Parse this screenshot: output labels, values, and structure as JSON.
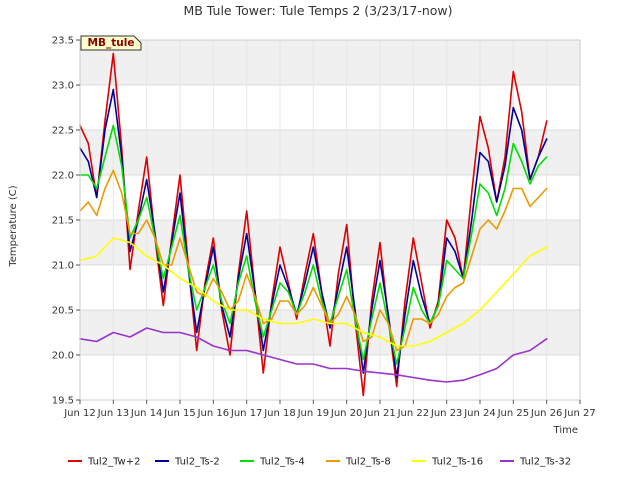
{
  "chart_data": {
    "type": "line",
    "title": "MB Tule Tower: Tule Temps 2 (3/23/17-now)",
    "xlabel": "Time",
    "ylabel": "Temperature (C)",
    "badge": "MB_tule",
    "xlim": [
      12.0,
      27.0
    ],
    "ylim": [
      19.5,
      23.5
    ],
    "x_ticks": [
      {
        "v": 12,
        "label": "Jun 12"
      },
      {
        "v": 13,
        "label": "Jun 13"
      },
      {
        "v": 14,
        "label": "Jun 14"
      },
      {
        "v": 15,
        "label": "Jun 15"
      },
      {
        "v": 16,
        "label": "Jun 16"
      },
      {
        "v": 17,
        "label": "Jun 17"
      },
      {
        "v": 18,
        "label": "Jun 18"
      },
      {
        "v": 19,
        "label": "Jun 19"
      },
      {
        "v": 20,
        "label": "Jun 20"
      },
      {
        "v": 21,
        "label": "Jun 21"
      },
      {
        "v": 22,
        "label": "Jun 22"
      },
      {
        "v": 23,
        "label": "Jun 23"
      },
      {
        "v": 24,
        "label": "Jun 24"
      },
      {
        "v": 25,
        "label": "Jun 25"
      },
      {
        "v": 26,
        "label": "Jun 26"
      },
      {
        "v": 27,
        "label": "Jun 27"
      }
    ],
    "y_ticks": [
      {
        "v": 19.5,
        "label": "19.5"
      },
      {
        "v": 20.0,
        "label": "20.0"
      },
      {
        "v": 20.5,
        "label": "20.5"
      },
      {
        "v": 21.0,
        "label": "21.0"
      },
      {
        "v": 21.5,
        "label": "21.5"
      },
      {
        "v": 22.0,
        "label": "22.0"
      },
      {
        "v": 22.5,
        "label": "22.5"
      },
      {
        "v": 23.0,
        "label": "23.0"
      },
      {
        "v": 23.5,
        "label": "23.5"
      }
    ],
    "legend_position": "bottom",
    "series": [
      {
        "name": "Tul2_Tw+2",
        "color": "#dd0000",
        "x": [
          12.0,
          12.25,
          12.5,
          12.75,
          13.0,
          13.25,
          13.5,
          13.75,
          14.0,
          14.25,
          14.5,
          14.75,
          15.0,
          15.25,
          15.5,
          15.75,
          16.0,
          16.25,
          16.5,
          16.75,
          17.0,
          17.25,
          17.5,
          17.75,
          18.0,
          18.25,
          18.5,
          18.75,
          19.0,
          19.25,
          19.5,
          19.75,
          20.0,
          20.25,
          20.5,
          20.75,
          21.0,
          21.25,
          21.5,
          21.75,
          22.0,
          22.25,
          22.5,
          22.75,
          23.0,
          23.25,
          23.5,
          23.75,
          24.0,
          24.25,
          24.5,
          24.75,
          25.0,
          25.25,
          25.5,
          25.75,
          26.0
        ],
        "y": [
          22.55,
          22.35,
          21.75,
          22.6,
          23.35,
          22.3,
          20.95,
          21.6,
          22.2,
          21.3,
          20.55,
          21.3,
          22.0,
          21.0,
          20.05,
          20.8,
          21.3,
          20.5,
          20.0,
          20.9,
          21.6,
          20.7,
          19.8,
          20.6,
          21.2,
          20.8,
          20.4,
          20.9,
          21.35,
          20.7,
          20.1,
          20.9,
          21.45,
          20.4,
          19.55,
          20.6,
          21.25,
          20.4,
          19.65,
          20.6,
          21.3,
          20.8,
          20.3,
          20.6,
          21.5,
          21.3,
          20.85,
          21.8,
          22.65,
          22.3,
          21.7,
          22.2,
          23.15,
          22.7,
          21.95,
          22.2,
          22.6
        ]
      },
      {
        "name": "Tul2_Ts-2",
        "color": "#000099",
        "x": [
          12.0,
          12.25,
          12.5,
          12.75,
          13.0,
          13.25,
          13.5,
          13.75,
          14.0,
          14.25,
          14.5,
          14.75,
          15.0,
          15.25,
          15.5,
          15.75,
          16.0,
          16.25,
          16.5,
          16.75,
          17.0,
          17.25,
          17.5,
          17.75,
          18.0,
          18.25,
          18.5,
          18.75,
          19.0,
          19.25,
          19.5,
          19.75,
          20.0,
          20.25,
          20.5,
          20.75,
          21.0,
          21.25,
          21.5,
          21.75,
          22.0,
          22.25,
          22.5,
          22.75,
          23.0,
          23.25,
          23.5,
          23.75,
          24.0,
          24.25,
          24.5,
          24.75,
          25.0,
          25.25,
          25.5,
          25.75,
          26.0
        ],
        "y": [
          22.3,
          22.15,
          21.75,
          22.5,
          22.95,
          22.2,
          21.15,
          21.5,
          21.95,
          21.35,
          20.7,
          21.25,
          21.8,
          20.95,
          20.25,
          20.75,
          21.2,
          20.55,
          20.2,
          20.85,
          21.35,
          20.7,
          20.05,
          20.55,
          21.0,
          20.75,
          20.45,
          20.8,
          21.2,
          20.7,
          20.3,
          20.75,
          21.2,
          20.5,
          19.8,
          20.5,
          21.05,
          20.45,
          19.75,
          20.45,
          21.05,
          20.65,
          20.35,
          20.55,
          21.3,
          21.15,
          20.85,
          21.5,
          22.25,
          22.15,
          21.7,
          22.1,
          22.75,
          22.5,
          21.95,
          22.2,
          22.4
        ]
      },
      {
        "name": "Tul2_Ts-4",
        "color": "#00dd00",
        "x": [
          12.0,
          12.25,
          12.5,
          12.75,
          13.0,
          13.25,
          13.5,
          13.75,
          14.0,
          14.25,
          14.5,
          14.75,
          15.0,
          15.25,
          15.5,
          15.75,
          16.0,
          16.25,
          16.5,
          16.75,
          17.0,
          17.25,
          17.5,
          17.75,
          18.0,
          18.25,
          18.5,
          18.75,
          19.0,
          19.25,
          19.5,
          19.75,
          20.0,
          20.25,
          20.5,
          20.75,
          21.0,
          21.25,
          21.5,
          21.75,
          22.0,
          22.25,
          22.5,
          22.75,
          23.0,
          23.25,
          23.5,
          23.75,
          24.0,
          24.25,
          24.5,
          24.75,
          25.0,
          25.25,
          25.5,
          25.75,
          26.0
        ],
        "y": [
          22.0,
          22.0,
          21.85,
          22.2,
          22.55,
          22.1,
          21.3,
          21.5,
          21.75,
          21.3,
          20.85,
          21.2,
          21.55,
          20.95,
          20.5,
          20.75,
          21.0,
          20.6,
          20.35,
          20.8,
          21.1,
          20.6,
          20.2,
          20.5,
          20.8,
          20.7,
          20.45,
          20.7,
          21.0,
          20.6,
          20.35,
          20.65,
          20.95,
          20.4,
          19.95,
          20.4,
          20.8,
          20.35,
          19.9,
          20.3,
          20.75,
          20.5,
          20.35,
          20.55,
          21.05,
          20.95,
          20.85,
          21.35,
          21.9,
          21.8,
          21.55,
          21.85,
          22.35,
          22.15,
          21.9,
          22.1,
          22.2
        ]
      },
      {
        "name": "Tul2_Ts-8",
        "color": "#ee9900",
        "x": [
          12.0,
          12.25,
          12.5,
          12.75,
          13.0,
          13.25,
          13.5,
          13.75,
          14.0,
          14.25,
          14.5,
          14.75,
          15.0,
          15.25,
          15.5,
          15.75,
          16.0,
          16.25,
          16.5,
          16.75,
          17.0,
          17.25,
          17.5,
          17.75,
          18.0,
          18.25,
          18.5,
          18.75,
          19.0,
          19.25,
          19.5,
          19.75,
          20.0,
          20.25,
          20.5,
          20.75,
          21.0,
          21.25,
          21.5,
          21.75,
          22.0,
          22.25,
          22.5,
          22.75,
          23.0,
          23.25,
          23.5,
          23.75,
          24.0,
          24.25,
          24.5,
          24.75,
          25.0,
          25.25,
          25.5,
          25.75,
          26.0
        ],
        "y": [
          21.6,
          21.7,
          21.55,
          21.85,
          22.05,
          21.8,
          21.35,
          21.35,
          21.5,
          21.3,
          21.0,
          21.0,
          21.3,
          21.0,
          20.7,
          20.65,
          20.85,
          20.7,
          20.5,
          20.6,
          20.9,
          20.65,
          20.35,
          20.4,
          20.6,
          20.6,
          20.45,
          20.55,
          20.75,
          20.55,
          20.35,
          20.45,
          20.65,
          20.45,
          20.15,
          20.2,
          20.5,
          20.35,
          20.05,
          20.1,
          20.4,
          20.4,
          20.35,
          20.45,
          20.65,
          20.75,
          20.8,
          21.1,
          21.4,
          21.5,
          21.4,
          21.6,
          21.85,
          21.85,
          21.65,
          21.75,
          21.85
        ]
      },
      {
        "name": "Tul2_Ts-16",
        "color": "#ffff00",
        "x": [
          12.0,
          12.5,
          13.0,
          13.5,
          14.0,
          14.5,
          15.0,
          15.5,
          16.0,
          16.5,
          17.0,
          17.5,
          18.0,
          18.5,
          19.0,
          19.5,
          20.0,
          20.5,
          21.0,
          21.5,
          22.0,
          22.5,
          23.0,
          23.5,
          24.0,
          24.5,
          25.0,
          25.5,
          26.0
        ],
        "y": [
          21.05,
          21.1,
          21.3,
          21.25,
          21.1,
          21.0,
          20.85,
          20.75,
          20.6,
          20.5,
          20.5,
          20.4,
          20.35,
          20.35,
          20.4,
          20.35,
          20.35,
          20.25,
          20.2,
          20.1,
          20.1,
          20.15,
          20.25,
          20.35,
          20.5,
          20.7,
          20.9,
          21.1,
          21.2
        ]
      },
      {
        "name": "Tul2_Ts-32",
        "color": "#9933cc",
        "x": [
          12.0,
          12.5,
          13.0,
          13.5,
          14.0,
          14.5,
          15.0,
          15.5,
          16.0,
          16.5,
          17.0,
          17.5,
          18.0,
          18.5,
          19.0,
          19.5,
          20.0,
          20.5,
          21.0,
          21.5,
          22.0,
          22.5,
          23.0,
          23.5,
          24.0,
          24.5,
          25.0,
          25.5,
          26.0
        ],
        "y": [
          20.18,
          20.15,
          20.25,
          20.2,
          20.3,
          20.25,
          20.25,
          20.2,
          20.1,
          20.05,
          20.05,
          20.0,
          19.95,
          19.9,
          19.9,
          19.85,
          19.85,
          19.82,
          19.8,
          19.78,
          19.75,
          19.72,
          19.7,
          19.72,
          19.78,
          19.85,
          20.0,
          20.05,
          20.18
        ]
      }
    ]
  }
}
